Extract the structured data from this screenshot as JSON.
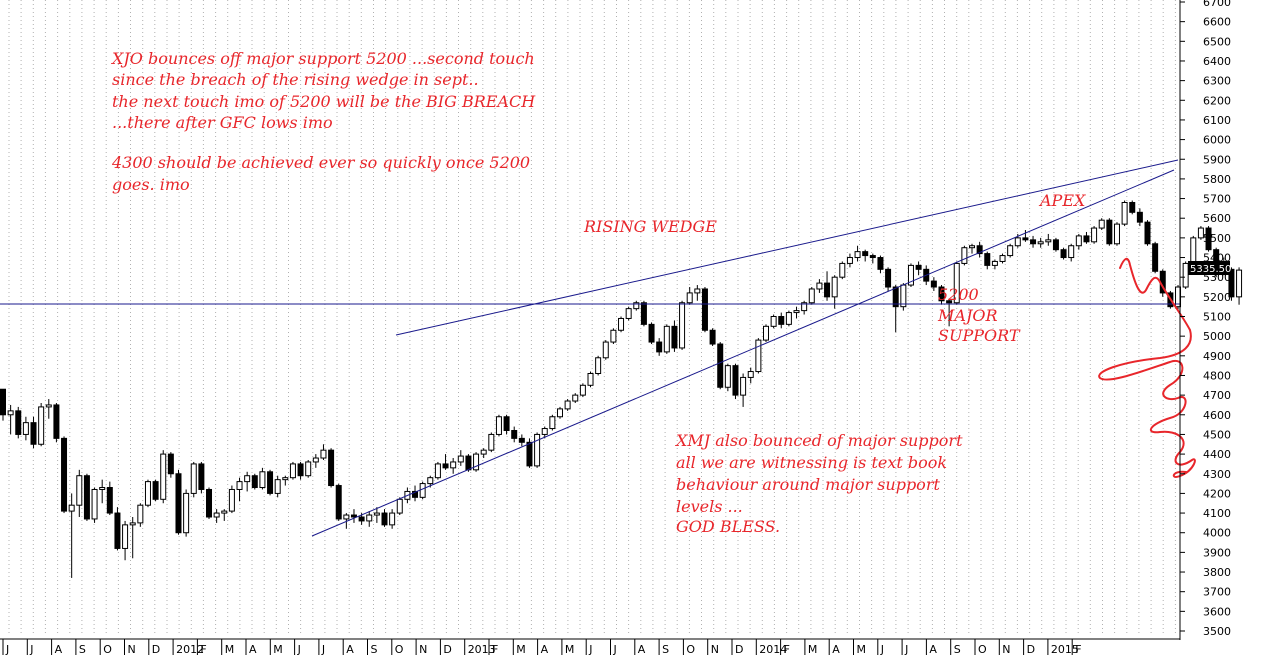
{
  "chart_data": {
    "type": "candlestick",
    "title": "",
    "xlabel": "",
    "ylabel": "",
    "ylim": [
      3450,
      6750
    ],
    "y_ticks": [
      3500,
      3600,
      3700,
      3800,
      3900,
      4000,
      4100,
      4200,
      4300,
      4400,
      4500,
      4600,
      4700,
      4800,
      4900,
      5000,
      5100,
      5200,
      5300,
      5400,
      5500,
      5600,
      5700,
      5800,
      5900,
      6000,
      6100,
      6200,
      6300,
      6400,
      6500,
      6600,
      6700
    ],
    "grid": "vertical dotted gridlines",
    "x_labels": [
      "J",
      "J",
      "A",
      "S",
      "O",
      "N",
      "D",
      "2012",
      "F",
      "M",
      "A",
      "M",
      "J",
      "J",
      "A",
      "S",
      "O",
      "N",
      "D",
      "2013",
      "F",
      "M",
      "A",
      "M",
      "J",
      "J",
      "A",
      "S",
      "O",
      "N",
      "D",
      "2014",
      "F",
      "M",
      "A",
      "M",
      "J",
      "J",
      "A",
      "S",
      "O",
      "N",
      "D",
      "2015",
      "F"
    ],
    "last_price_label": "5335.50",
    "candles_ohlc": [
      [
        4730,
        4730,
        4570,
        4600
      ],
      [
        4600,
        4650,
        4500,
        4620
      ],
      [
        4620,
        4640,
        4480,
        4500
      ],
      [
        4500,
        4590,
        4470,
        4560
      ],
      [
        4560,
        4590,
        4430,
        4450
      ],
      [
        4450,
        4660,
        4440,
        4640
      ],
      [
        4640,
        4680,
        4580,
        4650
      ],
      [
        4650,
        4660,
        4460,
        4480
      ],
      [
        4480,
        4490,
        4100,
        4110
      ],
      [
        4110,
        4200,
        3770,
        4140
      ],
      [
        4140,
        4320,
        4080,
        4290
      ],
      [
        4290,
        4300,
        4060,
        4070
      ],
      [
        4070,
        4230,
        4050,
        4220
      ],
      [
        4220,
        4270,
        4150,
        4230
      ],
      [
        4230,
        4260,
        4090,
        4100
      ],
      [
        4100,
        4130,
        3910,
        3920
      ],
      [
        3920,
        4060,
        3860,
        4040
      ],
      [
        4040,
        4080,
        3870,
        4050
      ],
      [
        4050,
        4150,
        4030,
        4140
      ],
      [
        4140,
        4270,
        4130,
        4260
      ],
      [
        4260,
        4270,
        4160,
        4170
      ],
      [
        4170,
        4420,
        4150,
        4400
      ],
      [
        4400,
        4410,
        4280,
        4300
      ],
      [
        4300,
        4320,
        3990,
        4000
      ],
      [
        4000,
        4220,
        3980,
        4200
      ],
      [
        4200,
        4360,
        4180,
        4350
      ],
      [
        4350,
        4360,
        4200,
        4220
      ],
      [
        4220,
        4230,
        4070,
        4080
      ],
      [
        4080,
        4120,
        4050,
        4100
      ],
      [
        4100,
        4120,
        4060,
        4110
      ],
      [
        4110,
        4240,
        4100,
        4220
      ],
      [
        4220,
        4280,
        4160,
        4260
      ],
      [
        4260,
        4310,
        4210,
        4290
      ],
      [
        4290,
        4300,
        4220,
        4230
      ],
      [
        4230,
        4330,
        4220,
        4310
      ],
      [
        4310,
        4320,
        4190,
        4200
      ],
      [
        4200,
        4290,
        4180,
        4270
      ],
      [
        4270,
        4290,
        4240,
        4280
      ],
      [
        4280,
        4360,
        4270,
        4350
      ],
      [
        4350,
        4360,
        4270,
        4290
      ],
      [
        4290,
        4370,
        4280,
        4360
      ],
      [
        4360,
        4400,
        4330,
        4380
      ],
      [
        4380,
        4450,
        4370,
        4420
      ],
      [
        4420,
        4430,
        4230,
        4240
      ],
      [
        4240,
        4250,
        4060,
        4070
      ],
      [
        4070,
        4100,
        4020,
        4090
      ],
      [
        4090,
        4120,
        4050,
        4080
      ],
      [
        4080,
        4100,
        4040,
        4060
      ],
      [
        4060,
        4110,
        4030,
        4090
      ],
      [
        4090,
        4130,
        4050,
        4100
      ],
      [
        4100,
        4120,
        4030,
        4040
      ],
      [
        4040,
        4120,
        4020,
        4100
      ],
      [
        4100,
        4180,
        4090,
        4170
      ],
      [
        4170,
        4230,
        4150,
        4210
      ],
      [
        4210,
        4240,
        4160,
        4180
      ],
      [
        4180,
        4260,
        4170,
        4250
      ],
      [
        4250,
        4290,
        4230,
        4280
      ],
      [
        4280,
        4360,
        4270,
        4350
      ],
      [
        4350,
        4400,
        4320,
        4330
      ],
      [
        4330,
        4380,
        4300,
        4360
      ],
      [
        4360,
        4420,
        4340,
        4390
      ],
      [
        4390,
        4400,
        4310,
        4320
      ],
      [
        4320,
        4410,
        4310,
        4400
      ],
      [
        4400,
        4430,
        4380,
        4420
      ],
      [
        4420,
        4510,
        4410,
        4500
      ],
      [
        4500,
        4600,
        4490,
        4590
      ],
      [
        4590,
        4600,
        4500,
        4520
      ],
      [
        4520,
        4540,
        4460,
        4480
      ],
      [
        4480,
        4500,
        4440,
        4460
      ],
      [
        4460,
        4480,
        4330,
        4340
      ],
      [
        4340,
        4510,
        4330,
        4500
      ],
      [
        4500,
        4540,
        4480,
        4530
      ],
      [
        4530,
        4600,
        4520,
        4590
      ],
      [
        4590,
        4640,
        4580,
        4630
      ],
      [
        4630,
        4680,
        4620,
        4670
      ],
      [
        4670,
        4710,
        4660,
        4700
      ],
      [
        4700,
        4760,
        4690,
        4750
      ],
      [
        4750,
        4820,
        4740,
        4810
      ],
      [
        4810,
        4900,
        4800,
        4890
      ],
      [
        4890,
        4980,
        4880,
        4970
      ],
      [
        4970,
        5040,
        4960,
        5030
      ],
      [
        5030,
        5100,
        5020,
        5090
      ],
      [
        5090,
        5150,
        5080,
        5140
      ],
      [
        5140,
        5180,
        5130,
        5170
      ],
      [
        5170,
        5180,
        5050,
        5060
      ],
      [
        5060,
        5070,
        4960,
        4970
      ],
      [
        4970,
        4990,
        4900,
        4920
      ],
      [
        4920,
        5060,
        4910,
        5050
      ],
      [
        5050,
        5080,
        4920,
        4940
      ],
      [
        4940,
        5180,
        4930,
        5170
      ],
      [
        5170,
        5250,
        5160,
        5220
      ],
      [
        5220,
        5260,
        5180,
        5240
      ],
      [
        5240,
        5250,
        5020,
        5030
      ],
      [
        5030,
        5040,
        4950,
        4960
      ],
      [
        4960,
        4970,
        4730,
        4740
      ],
      [
        4740,
        4860,
        4720,
        4850
      ],
      [
        4850,
        4860,
        4680,
        4700
      ],
      [
        4700,
        4810,
        4640,
        4790
      ],
      [
        4790,
        4840,
        4760,
        4820
      ],
      [
        4820,
        4990,
        4810,
        4980
      ],
      [
        4980,
        5060,
        4970,
        5050
      ],
      [
        5050,
        5110,
        5040,
        5100
      ],
      [
        5100,
        5120,
        5040,
        5060
      ],
      [
        5060,
        5130,
        5050,
        5120
      ],
      [
        5120,
        5150,
        5090,
        5130
      ],
      [
        5130,
        5180,
        5110,
        5170
      ],
      [
        5170,
        5250,
        5160,
        5240
      ],
      [
        5240,
        5290,
        5220,
        5270
      ],
      [
        5270,
        5330,
        5180,
        5200
      ],
      [
        5200,
        5310,
        5140,
        5300
      ],
      [
        5300,
        5380,
        5290,
        5370
      ],
      [
        5370,
        5420,
        5350,
        5400
      ],
      [
        5400,
        5460,
        5380,
        5430
      ],
      [
        5430,
        5440,
        5380,
        5410
      ],
      [
        5410,
        5420,
        5370,
        5400
      ],
      [
        5400,
        5410,
        5320,
        5340
      ],
      [
        5340,
        5350,
        5230,
        5250
      ],
      [
        5250,
        5260,
        5020,
        5150
      ],
      [
        5150,
        5270,
        5130,
        5260
      ],
      [
        5260,
        5370,
        5250,
        5360
      ],
      [
        5360,
        5380,
        5310,
        5340
      ],
      [
        5340,
        5360,
        5260,
        5280
      ],
      [
        5280,
        5300,
        5230,
        5250
      ],
      [
        5250,
        5260,
        5160,
        5180
      ],
      [
        5180,
        5190,
        5050,
        5170
      ],
      [
        5170,
        5380,
        5160,
        5370
      ],
      [
        5370,
        5460,
        5360,
        5450
      ],
      [
        5450,
        5470,
        5420,
        5460
      ],
      [
        5460,
        5480,
        5400,
        5420
      ],
      [
        5420,
        5430,
        5340,
        5360
      ],
      [
        5360,
        5390,
        5340,
        5380
      ],
      [
        5380,
        5420,
        5370,
        5410
      ],
      [
        5410,
        5470,
        5400,
        5460
      ],
      [
        5460,
        5520,
        5450,
        5500
      ],
      [
        5500,
        5540,
        5480,
        5490
      ],
      [
        5490,
        5510,
        5450,
        5470
      ],
      [
        5470,
        5500,
        5450,
        5480
      ],
      [
        5480,
        5520,
        5460,
        5490
      ],
      [
        5490,
        5500,
        5430,
        5440
      ],
      [
        5440,
        5450,
        5390,
        5400
      ],
      [
        5400,
        5470,
        5380,
        5460
      ],
      [
        5460,
        5520,
        5440,
        5510
      ],
      [
        5510,
        5530,
        5470,
        5480
      ],
      [
        5480,
        5560,
        5470,
        5550
      ],
      [
        5550,
        5600,
        5540,
        5590
      ],
      [
        5590,
        5600,
        5460,
        5470
      ],
      [
        5470,
        5580,
        5460,
        5570
      ],
      [
        5570,
        5690,
        5560,
        5680
      ],
      [
        5680,
        5690,
        5620,
        5630
      ],
      [
        5630,
        5650,
        5560,
        5580
      ],
      [
        5580,
        5590,
        5460,
        5470
      ],
      [
        5470,
        5480,
        5320,
        5330
      ],
      [
        5330,
        5340,
        5200,
        5220
      ],
      [
        5220,
        5230,
        5140,
        5150
      ],
      [
        5150,
        5260,
        5130,
        5250
      ],
      [
        5250,
        5380,
        5240,
        5370
      ],
      [
        5370,
        5510,
        5360,
        5500
      ],
      [
        5500,
        5560,
        5490,
        5550
      ],
      [
        5550,
        5560,
        5430,
        5440
      ],
      [
        5440,
        5450,
        5300,
        5320
      ],
      [
        5320,
        5400,
        5310,
        5340
      ],
      [
        5340,
        5350,
        5180,
        5200
      ],
      [
        5200,
        5350,
        5160,
        5336
      ]
    ],
    "lines": [
      {
        "name": "",
        "points": [
          [
            0,
            5000
          ],
          [
            1,
            5850
          ]
        ]
      },
      {
        "name": "",
        "points": [
          [
            0,
            3980
          ],
          [
            1,
            5820
          ]
        ]
      },
      {
        "name": "",
        "points": [
          [
            0,
            5155
          ],
          [
            1,
            5155
          ]
        ]
      }
    ],
    "annotations": [
      "XJO bounces off major support 5200 ...second touch",
      "since the breach  of the rising wedge in sept..",
      "the next touch imo of 5200 will be the BIG BREACH",
      "...there after GFC lows imo",
      "4300 should be achieved ever so quickly once 5200",
      "goes. imo",
      "RISING WEDGE",
      "APEX",
      "5200",
      "MAJOR",
      "SUPPORT",
      "XMJ also bounced of major support",
      "all we are witnessing is text book",
      "behaviour around major support",
      "levels ...",
      "GOD BLESS."
    ]
  },
  "colors": {
    "candle_up_fill": "#ffffff",
    "candle_down_fill": "#000000",
    "wick": "#000000",
    "trendline": "#1a1a8c",
    "annotation": "#e8262b",
    "grid": "#b0b0b0",
    "price_label_bg": "#000000"
  }
}
